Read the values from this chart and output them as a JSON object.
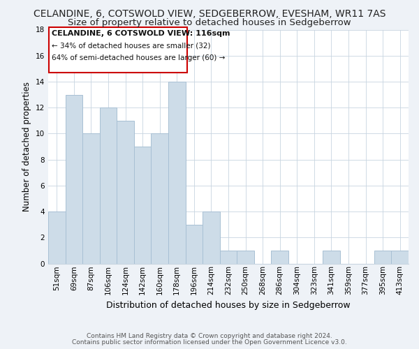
{
  "title": "CELANDINE, 6, COTSWOLD VIEW, SEDGEBERROW, EVESHAM, WR11 7AS",
  "subtitle": "Size of property relative to detached houses in Sedgeberrow",
  "xlabel": "Distribution of detached houses by size in Sedgeberrow",
  "ylabel": "Number of detached properties",
  "bar_labels": [
    "51sqm",
    "69sqm",
    "87sqm",
    "106sqm",
    "124sqm",
    "142sqm",
    "160sqm",
    "178sqm",
    "196sqm",
    "214sqm",
    "232sqm",
    "250sqm",
    "268sqm",
    "286sqm",
    "304sqm",
    "323sqm",
    "341sqm",
    "359sqm",
    "377sqm",
    "395sqm",
    "413sqm"
  ],
  "bar_values": [
    4,
    13,
    10,
    12,
    11,
    9,
    10,
    14,
    3,
    4,
    1,
    1,
    0,
    1,
    0,
    0,
    1,
    0,
    0,
    1,
    1
  ],
  "bar_color": "#cddce8",
  "bar_edge_color": "#a8c0d4",
  "ylim": [
    0,
    18
  ],
  "yticks": [
    0,
    2,
    4,
    6,
    8,
    10,
    12,
    14,
    16,
    18
  ],
  "annotation_title": "CELANDINE, 6 COTSWOLD VIEW: 116sqm",
  "annotation_line1": "← 34% of detached houses are smaller (32)",
  "annotation_line2": "64% of semi-detached houses are larger (60) →",
  "footer_line1": "Contains HM Land Registry data © Crown copyright and database right 2024.",
  "footer_line2": "Contains public sector information licensed under the Open Government Licence v3.0.",
  "bg_color": "#eef2f7",
  "plot_bg_color": "#ffffff",
  "title_fontsize": 10,
  "subtitle_fontsize": 9.5,
  "ylabel_fontsize": 8.5,
  "xlabel_fontsize": 9,
  "tick_fontsize": 7.5,
  "footer_fontsize": 6.5
}
